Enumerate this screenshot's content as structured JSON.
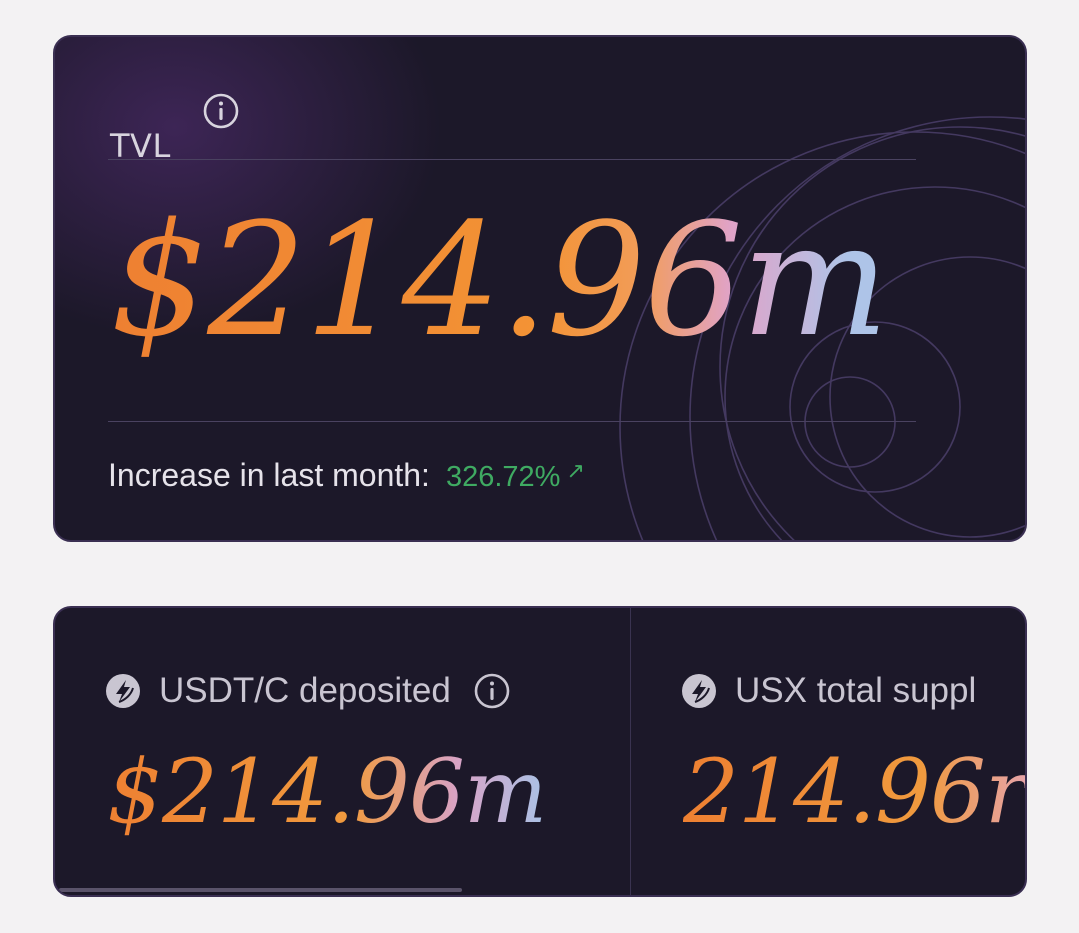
{
  "tvl": {
    "label": "TVL",
    "info_icon": "info-icon",
    "value": "$214.96m",
    "increase_label": "Increase in last month:",
    "increase_value": "326.72%",
    "increase_arrow": "↗"
  },
  "stats": [
    {
      "icon": "coin-logo-icon",
      "label": "USDT/C deposited",
      "info_icon": "info-icon",
      "value": "$214.96m"
    },
    {
      "icon": "coin-logo-icon",
      "label": "USX total suppl",
      "value": "214.96r"
    }
  ],
  "colors": {
    "card_bg": "#1c1829",
    "accent_orange": "#ee8032",
    "accent_blue": "#aec4e8",
    "positive_green": "#3faa62"
  }
}
